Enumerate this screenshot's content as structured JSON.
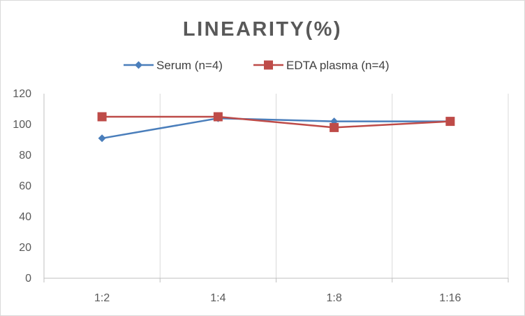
{
  "chart_data": {
    "type": "line",
    "title": "LINEARITY(%)",
    "xlabel": "",
    "ylabel": "",
    "categories": [
      "1:2",
      "1:4",
      "1:8",
      "1:16"
    ],
    "ylim": [
      0,
      120
    ],
    "yticks": [
      0,
      20,
      40,
      60,
      80,
      100,
      120
    ],
    "grid": "vertical",
    "legend_position": "top",
    "series": [
      {
        "name": "Serum (n=4)",
        "values": [
          91,
          104,
          102,
          102
        ],
        "color": "#4a7ebb",
        "marker": "diamond"
      },
      {
        "name": "EDTA plasma (n=4)",
        "values": [
          105,
          105,
          98,
          102
        ],
        "color": "#be4b48",
        "marker": "square"
      }
    ]
  }
}
